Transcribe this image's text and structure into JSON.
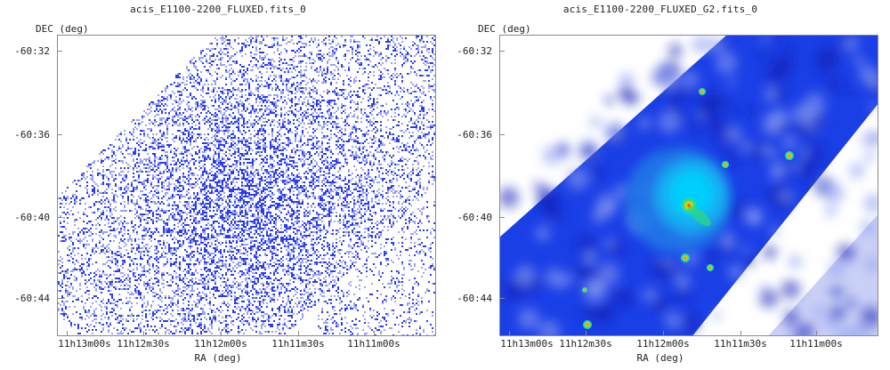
{
  "panels": [
    {
      "title": "acis_E1100-2200_FLUXED.fits_0",
      "ylabel": "DEC (deg)",
      "xlabel": "RA (deg)",
      "yticks": [
        "-60:32",
        "-60:36",
        "-60:40",
        "-60:44"
      ],
      "xticks": [
        "11h13m00s",
        "11h12m30s",
        "11h12m00s",
        "11h11m30s",
        "11h11m00s"
      ],
      "render": "counts"
    },
    {
      "title": "acis_E1100-2200_FLUXED_G2.fits_0",
      "ylabel": "DEC (deg)",
      "xlabel": "RA (deg)",
      "yticks": [
        "-60:32",
        "-60:36",
        "-60:40",
        "-60:44"
      ],
      "xticks": [
        "11h13m00s",
        "11h12m30s",
        "11h12m00s",
        "11h11m30s",
        "11h11m00s"
      ],
      "render": "smoothed"
    }
  ],
  "colors": {
    "axis": "#8a8a8a",
    "counts_dot": "#2b3cf0",
    "counts_dot_light": "#9aa3f7",
    "smooth_low": "#c9cff5",
    "smooth_mid": "#1a3fe6",
    "smooth_high": "#00d5ff",
    "source_core": "#ff2200"
  }
}
